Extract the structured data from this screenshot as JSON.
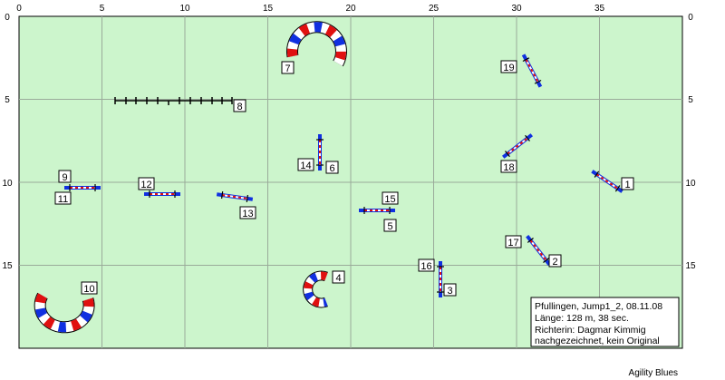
{
  "course": {
    "field_color": "#ccf5cc",
    "grid_color": "#9aaa9a",
    "x_ticks": [
      "0",
      "5",
      "10",
      "15",
      "20",
      "25",
      "30",
      "35"
    ],
    "y_ticks": [
      "0",
      "5",
      "10",
      "15"
    ],
    "info": {
      "line1": "Pfullingen, Jump1_2, 08.11.08",
      "line2": "Länge: 128 m, 38 sec.",
      "line3": "Richterin: Dagmar Kimmig",
      "line4": "nachgezeichnet, kein Original"
    },
    "credit": "Agility Blues",
    "obstacles": [
      {
        "type": "hurdle",
        "label": "1"
      },
      {
        "type": "hurdle",
        "label": "2"
      },
      {
        "type": "hurdle",
        "label": "3"
      },
      {
        "type": "tire",
        "label": "4"
      },
      {
        "type": "hurdle",
        "label": "5"
      },
      {
        "type": "hurdle",
        "label": "6"
      },
      {
        "type": "tunnel",
        "label": "7"
      },
      {
        "type": "hurdle",
        "label": "8"
      },
      {
        "type": "hurdle",
        "label": "9"
      },
      {
        "type": "tunnel",
        "label": "10"
      },
      {
        "type": "hurdle",
        "label": "11"
      },
      {
        "type": "hurdle",
        "label": "12"
      },
      {
        "type": "hurdle",
        "label": "13"
      },
      {
        "type": "hurdle",
        "label": "14"
      },
      {
        "type": "hurdle",
        "label": "15"
      },
      {
        "type": "hurdle",
        "label": "16"
      },
      {
        "type": "hurdle",
        "label": "17"
      },
      {
        "type": "hurdle",
        "label": "18"
      },
      {
        "type": "hurdle",
        "label": "19"
      }
    ]
  }
}
